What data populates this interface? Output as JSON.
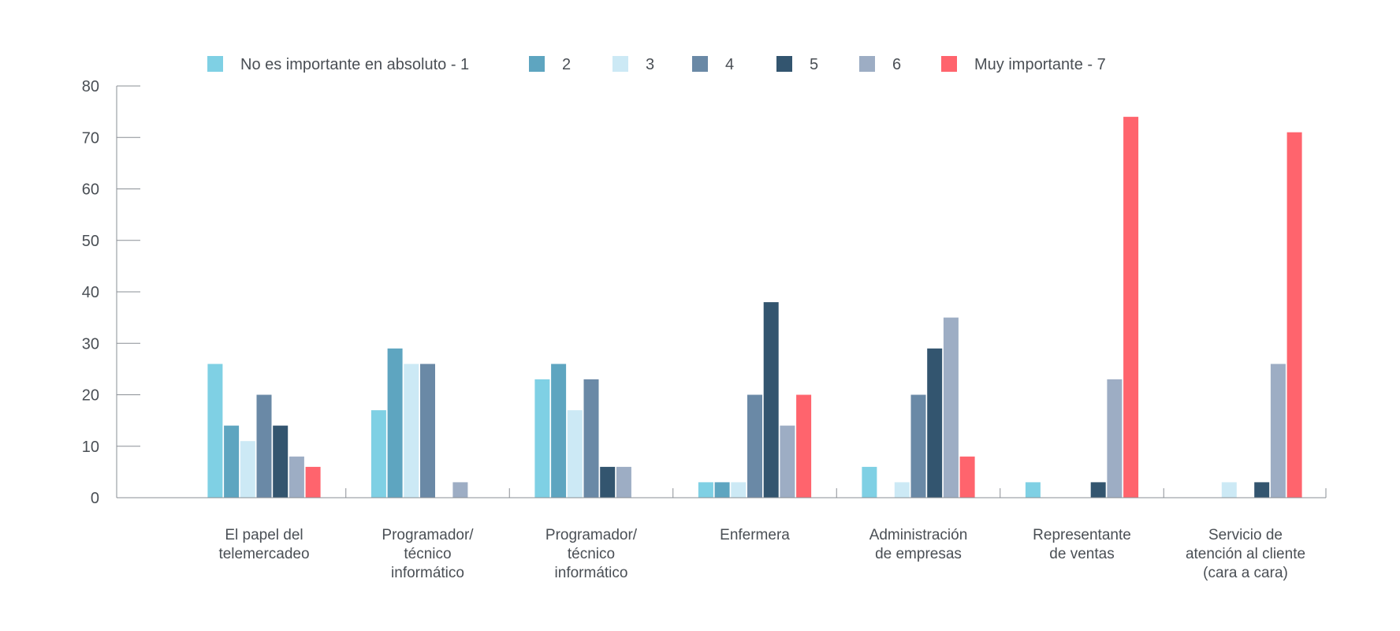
{
  "chart_data": {
    "type": "bar",
    "title": "",
    "xlabel": "",
    "ylabel": "",
    "ylim": [
      0,
      80
    ],
    "yticks": [
      0,
      10,
      20,
      30,
      40,
      50,
      60,
      70,
      80
    ],
    "grid": false,
    "legend_position": "top",
    "categories": [
      [
        "El papel del",
        "telemercadeo"
      ],
      [
        "Programador/",
        "técnico",
        "informático"
      ],
      [
        "Programador/",
        "técnico",
        "informático"
      ],
      [
        "Enfermera"
      ],
      [
        "Administración",
        "de empresas"
      ],
      [
        "Representante",
        "de ventas"
      ],
      [
        "Servicio de",
        "atención al cliente",
        "(cara a cara)"
      ]
    ],
    "series": [
      {
        "name": "No es importante en absoluto - 1",
        "color": "#7fd0e4",
        "values": [
          26,
          17,
          23,
          3,
          6,
          3,
          0
        ]
      },
      {
        "name": "2",
        "color": "#5ea5c0",
        "values": [
          14,
          29,
          26,
          3,
          0,
          0,
          0
        ]
      },
      {
        "name": "3",
        "color": "#cce9f5",
        "values": [
          11,
          26,
          17,
          3,
          3,
          0,
          3
        ]
      },
      {
        "name": "4",
        "color": "#6a89a6",
        "values": [
          20,
          26,
          23,
          20,
          20,
          0,
          0
        ]
      },
      {
        "name": "5",
        "color": "#33556f",
        "values": [
          14,
          0,
          6,
          38,
          29,
          3,
          3
        ]
      },
      {
        "name": "6",
        "color": "#9dadc4",
        "values": [
          8,
          3,
          6,
          14,
          35,
          23,
          26
        ]
      },
      {
        "name": "Muy importante - 7",
        "color": "#ff646d",
        "values": [
          6,
          0,
          0,
          20,
          8,
          74,
          71
        ]
      }
    ]
  }
}
